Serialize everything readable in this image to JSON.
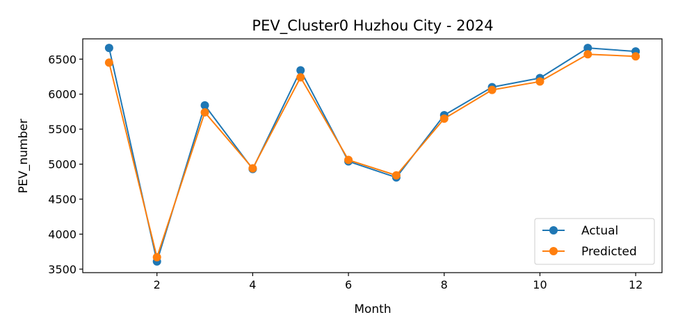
{
  "chart_data": {
    "type": "line",
    "title": "PEV_Cluster0 Huzhou City - 2024",
    "xlabel": "Month",
    "ylabel": "PEV_number",
    "x": [
      1,
      2,
      3,
      4,
      5,
      6,
      7,
      8,
      9,
      10,
      11,
      12
    ],
    "xticks": [
      2,
      4,
      6,
      8,
      10,
      12
    ],
    "yticks": [
      3500,
      4000,
      4500,
      5000,
      5500,
      6000,
      6500
    ],
    "xlim": [
      0.45,
      12.55
    ],
    "ylim": [
      3450,
      6790
    ],
    "grid": false,
    "legend_position": "lower-right",
    "series": [
      {
        "name": "Actual",
        "color": "#1f77b4",
        "values": [
          6660,
          3610,
          5840,
          4930,
          6340,
          5040,
          4810,
          5700,
          6100,
          6230,
          6660,
          6610
        ]
      },
      {
        "name": "Predicted",
        "color": "#ff7f0e",
        "values": [
          6450,
          3670,
          5740,
          4940,
          6240,
          5060,
          4840,
          5650,
          6060,
          6180,
          6570,
          6540
        ]
      }
    ]
  }
}
